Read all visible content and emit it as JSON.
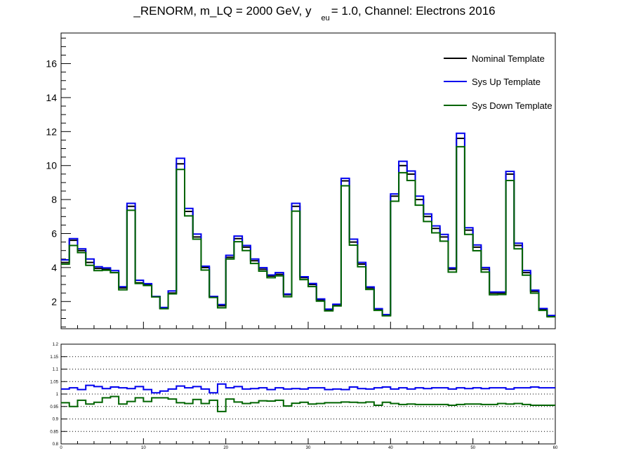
{
  "title": {
    "pre": "_RENORM, m_LQ = 2000 GeV, y",
    "sub": "eu",
    "post": "= 1.0, Channel: Electrons 2016"
  },
  "legend": {
    "nominal": "Nominal Template",
    "up": "Sys Up Template",
    "down": "Sys Down Template"
  },
  "colors": {
    "nominal": "#000000",
    "up": "#0000ee",
    "down": "#006400",
    "grid": "#000000"
  },
  "chart_data": [
    {
      "type": "step-histogram",
      "bins": 60,
      "xlim": [
        0,
        60
      ],
      "ylim": [
        0.4,
        17.8
      ],
      "y_ticks": [
        2,
        4,
        6,
        8,
        10,
        12,
        14,
        16
      ],
      "series": [
        {
          "name": "Nominal Template",
          "values": [
            4.3,
            5.6,
            5.0,
            4.3,
            3.95,
            3.9,
            3.7,
            2.8,
            7.6,
            3.1,
            3.0,
            2.3,
            1.6,
            2.5,
            10.1,
            7.3,
            5.8,
            4.0,
            2.3,
            1.75,
            4.6,
            5.7,
            5.2,
            4.4,
            3.9,
            3.5,
            3.6,
            2.4,
            7.6,
            3.4,
            3.0,
            2.1,
            1.5,
            1.8,
            9.1,
            5.5,
            4.2,
            2.8,
            1.55,
            1.2,
            8.2,
            10.0,
            9.5,
            8.0,
            7.0,
            6.3,
            5.8,
            3.9,
            11.6,
            6.2,
            5.2,
            3.9,
            2.5,
            2.5,
            9.5,
            5.3,
            3.7,
            2.6,
            1.55,
            1.15
          ]
        },
        {
          "name": "Sys Up Template",
          "values": [
            4.45,
            5.7,
            5.1,
            4.5,
            4.05,
            3.98,
            3.82,
            2.87,
            7.78,
            3.25,
            3.05,
            2.3,
            1.65,
            2.62,
            10.43,
            7.48,
            5.97,
            4.08,
            2.3,
            1.82,
            4.72,
            5.85,
            5.3,
            4.5,
            3.99,
            3.56,
            3.7,
            2.44,
            7.78,
            3.46,
            3.06,
            2.15,
            1.55,
            1.84,
            9.25,
            5.67,
            4.3,
            2.86,
            1.58,
            1.23,
            8.33,
            10.25,
            9.68,
            8.2,
            7.15,
            6.45,
            5.95,
            3.98,
            11.9,
            6.34,
            5.33,
            4.0,
            2.56,
            2.56,
            9.66,
            5.43,
            3.82,
            2.67,
            1.59,
            1.18
          ]
        },
        {
          "name": "Sys Down Template",
          "values": [
            4.2,
            5.3,
            4.88,
            4.13,
            3.82,
            3.84,
            3.7,
            2.69,
            7.37,
            3.06,
            2.94,
            2.27,
            1.58,
            2.45,
            9.77,
            7.04,
            5.67,
            3.85,
            2.24,
            1.63,
            4.5,
            5.52,
            5.0,
            4.24,
            3.79,
            3.4,
            3.51,
            2.28,
            7.32,
            3.29,
            2.88,
            2.02,
            1.45,
            1.74,
            8.81,
            5.32,
            4.05,
            2.71,
            1.48,
            1.16,
            7.9,
            9.58,
            9.12,
            7.67,
            6.71,
            6.04,
            5.55,
            3.73,
            11.11,
            5.95,
            4.99,
            3.73,
            2.4,
            2.41,
            9.12,
            5.1,
            3.55,
            2.49,
            1.48,
            1.1
          ]
        }
      ]
    },
    {
      "type": "ratio-step-histogram",
      "bins": 60,
      "xlim": [
        0,
        60
      ],
      "ylim": [
        0.8,
        1.2
      ],
      "x_ticks": [
        0,
        10,
        20,
        30,
        40,
        50,
        60
      ],
      "y_ticks": [
        0.8,
        0.85,
        0.9,
        0.95,
        1,
        1.05,
        1.1,
        1.15,
        1.2
      ],
      "grid_y": [
        0.85,
        0.9,
        0.95,
        1.0,
        1.05,
        1.1,
        1.15
      ],
      "grid": true,
      "series": [
        {
          "name": "Sys Up Template",
          "values": [
            1.02,
            1.025,
            1.018,
            1.035,
            1.03,
            1.022,
            1.028,
            1.025,
            1.022,
            1.03,
            1.018,
            1.005,
            1.012,
            1.02,
            1.032,
            1.025,
            1.03,
            1.02,
            1.005,
            1.04,
            1.025,
            1.03,
            1.02,
            1.022,
            1.025,
            1.018,
            1.025,
            1.02,
            1.022,
            1.02,
            1.025,
            1.025,
            1.018,
            1.02,
            1.018,
            1.028,
            1.022,
            1.02,
            1.025,
            1.028,
            1.02,
            1.025,
            1.02,
            1.025,
            1.022,
            1.025,
            1.025,
            1.02,
            1.025,
            1.022,
            1.025,
            1.022,
            1.025,
            1.025,
            1.02,
            1.025,
            1.025,
            1.028,
            1.025,
            1.025
          ]
        },
        {
          "name": "Sys Down Template",
          "values": [
            0.965,
            0.95,
            0.975,
            0.96,
            0.967,
            0.985,
            0.99,
            0.96,
            0.97,
            0.985,
            0.97,
            0.985,
            0.985,
            0.98,
            0.965,
            0.962,
            0.978,
            0.962,
            0.975,
            0.93,
            0.98,
            0.968,
            0.962,
            0.965,
            0.973,
            0.972,
            0.975,
            0.952,
            0.963,
            0.967,
            0.96,
            0.962,
            0.965,
            0.965,
            0.968,
            0.967,
            0.965,
            0.968,
            0.955,
            0.967,
            0.962,
            0.958,
            0.96,
            0.958,
            0.958,
            0.958,
            0.958,
            0.955,
            0.958,
            0.96,
            0.96,
            0.958,
            0.958,
            0.962,
            0.96,
            0.962,
            0.958,
            0.955,
            0.955,
            0.955
          ]
        }
      ]
    }
  ]
}
